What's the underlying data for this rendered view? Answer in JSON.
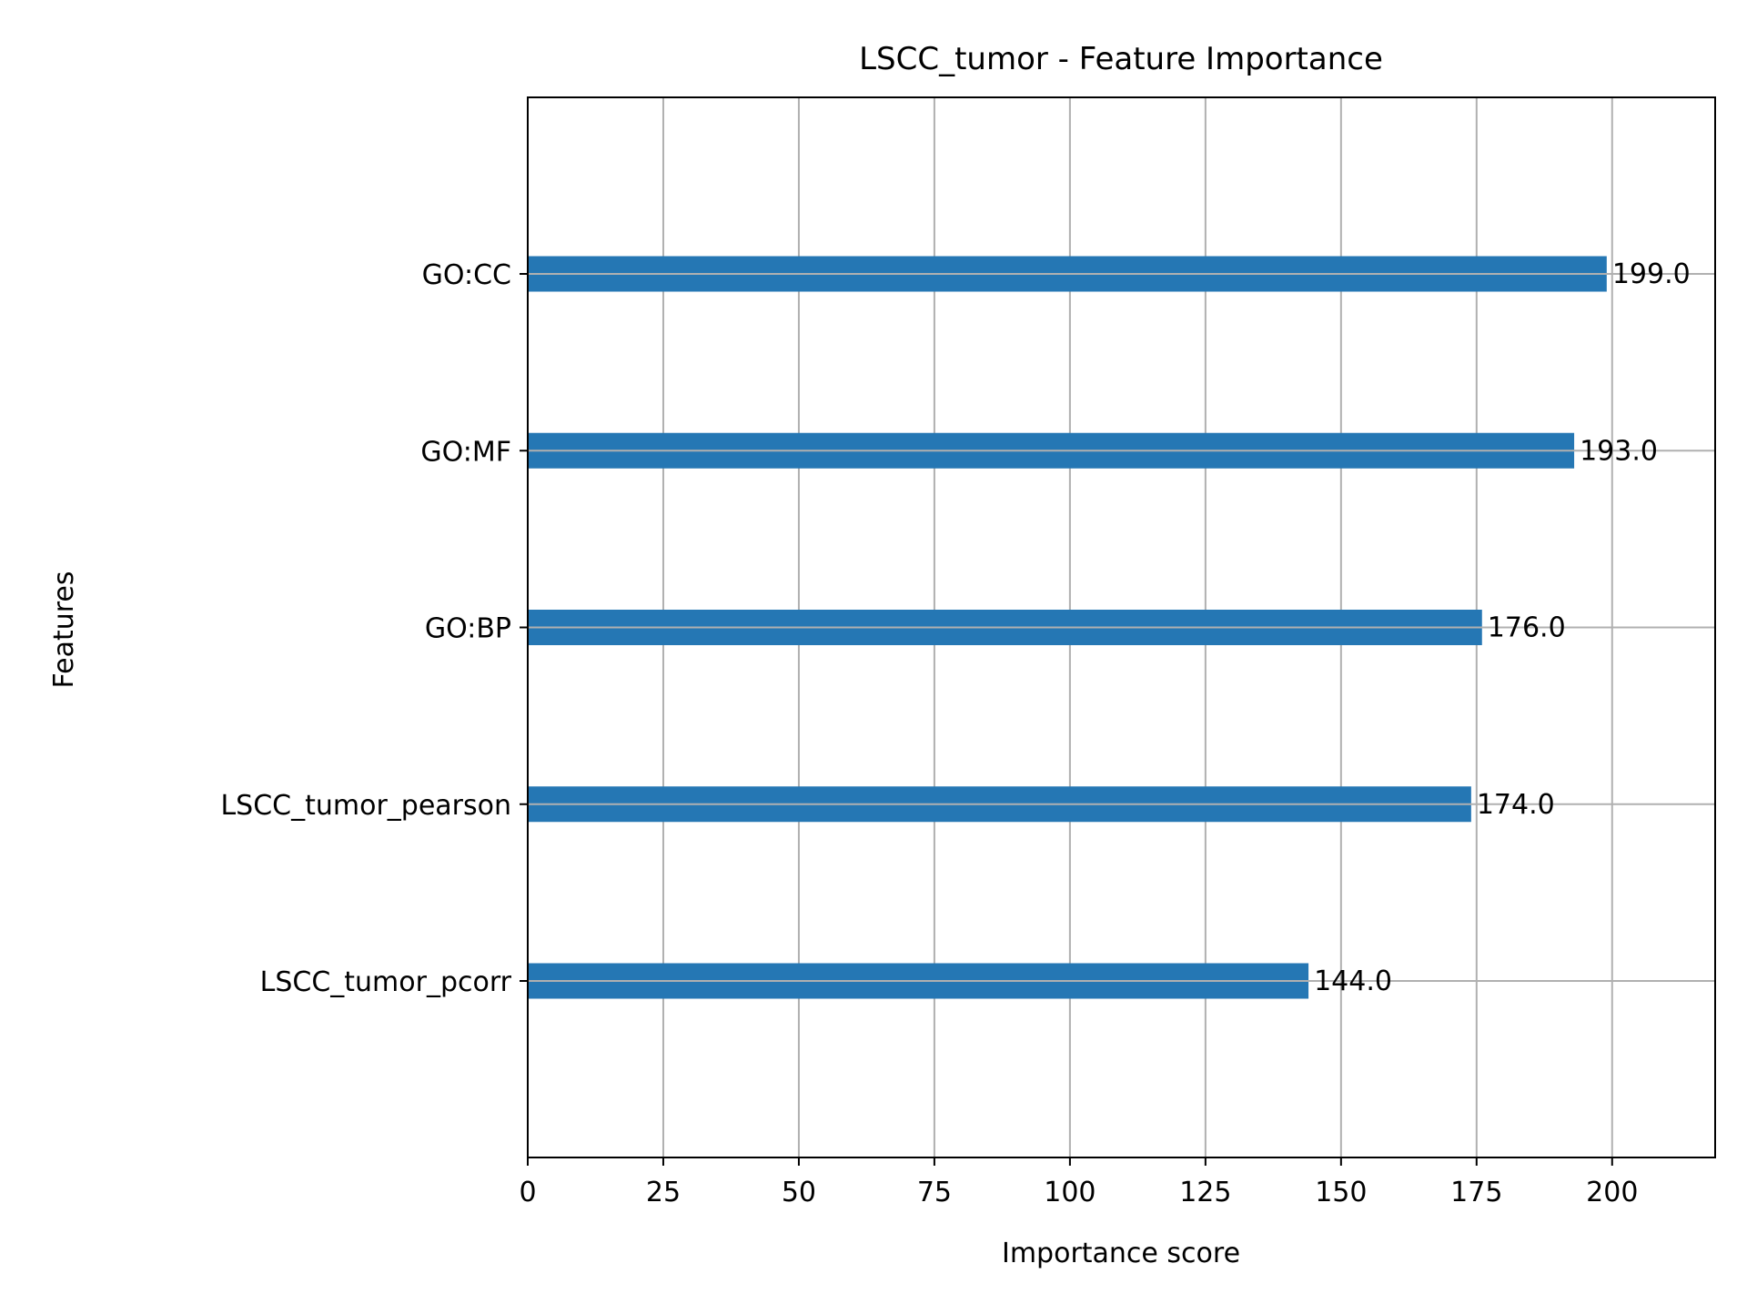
{
  "chart_data": {
    "type": "bar",
    "orientation": "horizontal",
    "title": "LSCC_tumor - Feature Importance",
    "xlabel": "Importance score",
    "ylabel": "Features",
    "categories": [
      "GO:CC",
      "GO:MF",
      "GO:BP",
      "LSCC_tumor_pearson",
      "LSCC_tumor_pcorr"
    ],
    "values": [
      199.0,
      193.0,
      176.0,
      174.0,
      144.0
    ],
    "value_labels": [
      "199.0",
      "193.0",
      "176.0",
      "174.0",
      "144.0"
    ],
    "xlim": [
      0,
      219
    ],
    "xticks": [
      0,
      25,
      50,
      75,
      100,
      125,
      150,
      175,
      200
    ],
    "grid": true,
    "legend": "none",
    "colors": {
      "bar": "#2577b4",
      "grid": "#b0b0b0",
      "axis": "#000000",
      "text": "#000000"
    }
  }
}
